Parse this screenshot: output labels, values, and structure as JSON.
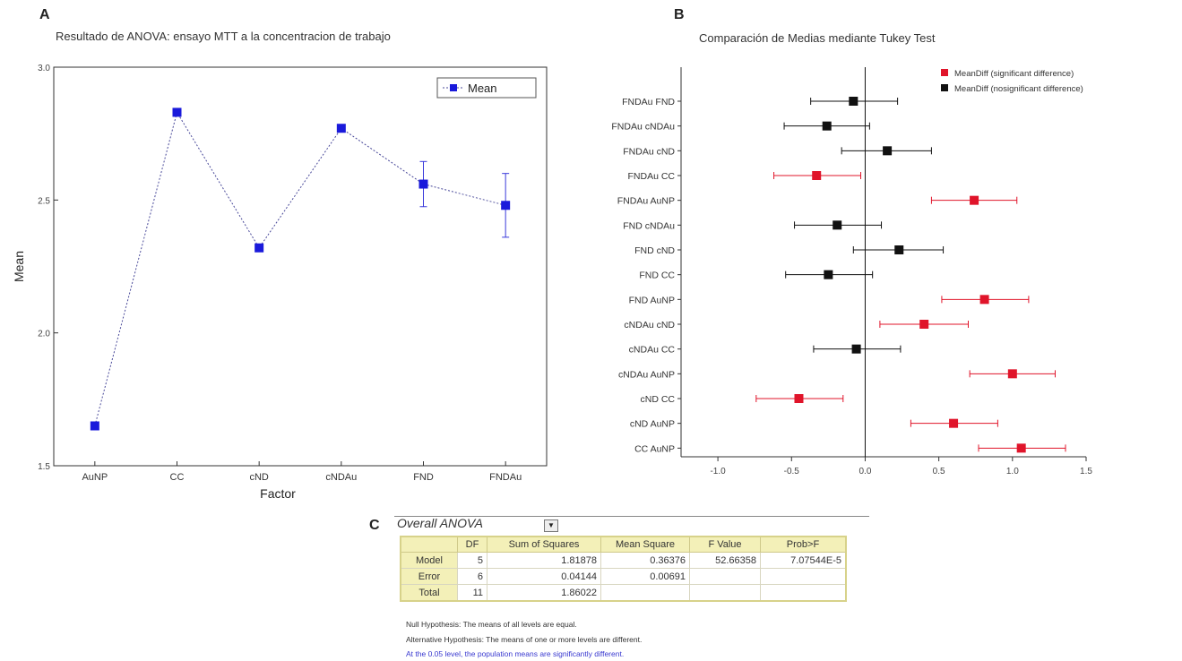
{
  "panels": {
    "a": {
      "letter": "A",
      "title": "Resultado de ANOVA: ensayo MTT a la concentracion de trabajo"
    },
    "b": {
      "letter": "B",
      "title": "Comparación de Medias mediante Tukey Test"
    },
    "c": {
      "letter": "C"
    }
  },
  "chart_data": [
    {
      "type": "line",
      "title": "Resultado de ANOVA: ensayo MTT a la concentracion de trabajo",
      "xlabel": "Factor",
      "ylabel": "Mean",
      "categories": [
        "AuNP",
        "CC",
        "cND",
        "cNDAu",
        "FND",
        "FNDAu"
      ],
      "series": [
        {
          "name": "Mean",
          "values": [
            1.65,
            2.83,
            2.32,
            2.77,
            2.56,
            2.48
          ],
          "error": [
            0,
            0,
            0,
            0,
            0.085,
            0.12
          ]
        }
      ],
      "ylim": [
        1.5,
        3.0
      ],
      "yticks": [
        "1.5",
        "2.0",
        "2.5",
        "3.0"
      ],
      "legend": "top-right",
      "colors": {
        "marker": "#1a1adb",
        "line": "#4a4a9a"
      }
    },
    {
      "type": "scatter",
      "title": "Comparación de Medias mediante Tukey Test",
      "categories": [
        "FNDAu FND",
        "FNDAu cNDAu",
        "FNDAu cND",
        "FNDAu CC",
        "FNDAu AuNP",
        "FND cNDAu",
        "FND cND",
        "FND CC",
        "FND AuNP",
        "cNDAu cND",
        "cNDAu CC",
        "cNDAu AuNP",
        "cND CC",
        "cND AuNP",
        "CC AuNP"
      ],
      "mean_diff": [
        -0.08,
        -0.26,
        0.15,
        -0.33,
        0.74,
        -0.19,
        0.23,
        -0.25,
        0.81,
        0.4,
        -0.06,
        1.0,
        -0.45,
        0.6,
        1.06
      ],
      "ci_low": [
        -0.37,
        -0.55,
        -0.16,
        -0.62,
        0.45,
        -0.48,
        -0.08,
        -0.54,
        0.52,
        0.1,
        -0.35,
        0.71,
        -0.74,
        0.31,
        0.77
      ],
      "ci_high": [
        0.22,
        0.03,
        0.45,
        -0.03,
        1.03,
        0.11,
        0.53,
        0.05,
        1.11,
        0.7,
        0.24,
        1.29,
        -0.15,
        0.9,
        1.36
      ],
      "significant": [
        false,
        false,
        false,
        true,
        true,
        false,
        false,
        false,
        true,
        true,
        false,
        true,
        true,
        true,
        true
      ],
      "xlim": [
        -1.25,
        1.5
      ],
      "xticks": [
        "-1.0",
        "-0.5",
        "0.0",
        "0.5",
        "1.0",
        "1.5"
      ],
      "legend": "top-right",
      "legend_entries": [
        "MeanDiff (significant difference)",
        "MeanDiff (nosignificant difference)"
      ],
      "colors": {
        "significant": "#e0142a",
        "nonsignificant": "#111111"
      }
    }
  ],
  "anova": {
    "dropdown": "Overall ANOVA",
    "columns": [
      "",
      "DF",
      "Sum of Squares",
      "Mean Square",
      "F Value",
      "Prob>F"
    ],
    "rows": [
      [
        "Model",
        "5",
        "1.81878",
        "0.36376",
        "52.66358",
        "7.07544E-5"
      ],
      [
        "Error",
        "6",
        "0.04144",
        "0.00691",
        "",
        ""
      ],
      [
        "Total",
        "11",
        "1.86022",
        "",
        "",
        ""
      ]
    ],
    "notes": [
      "Null Hypothesis: The means of all levels are equal.",
      "Alternative Hypothesis: The means of one or more levels are different.",
      "At the 0.05 level, the population means are significantly different."
    ]
  }
}
